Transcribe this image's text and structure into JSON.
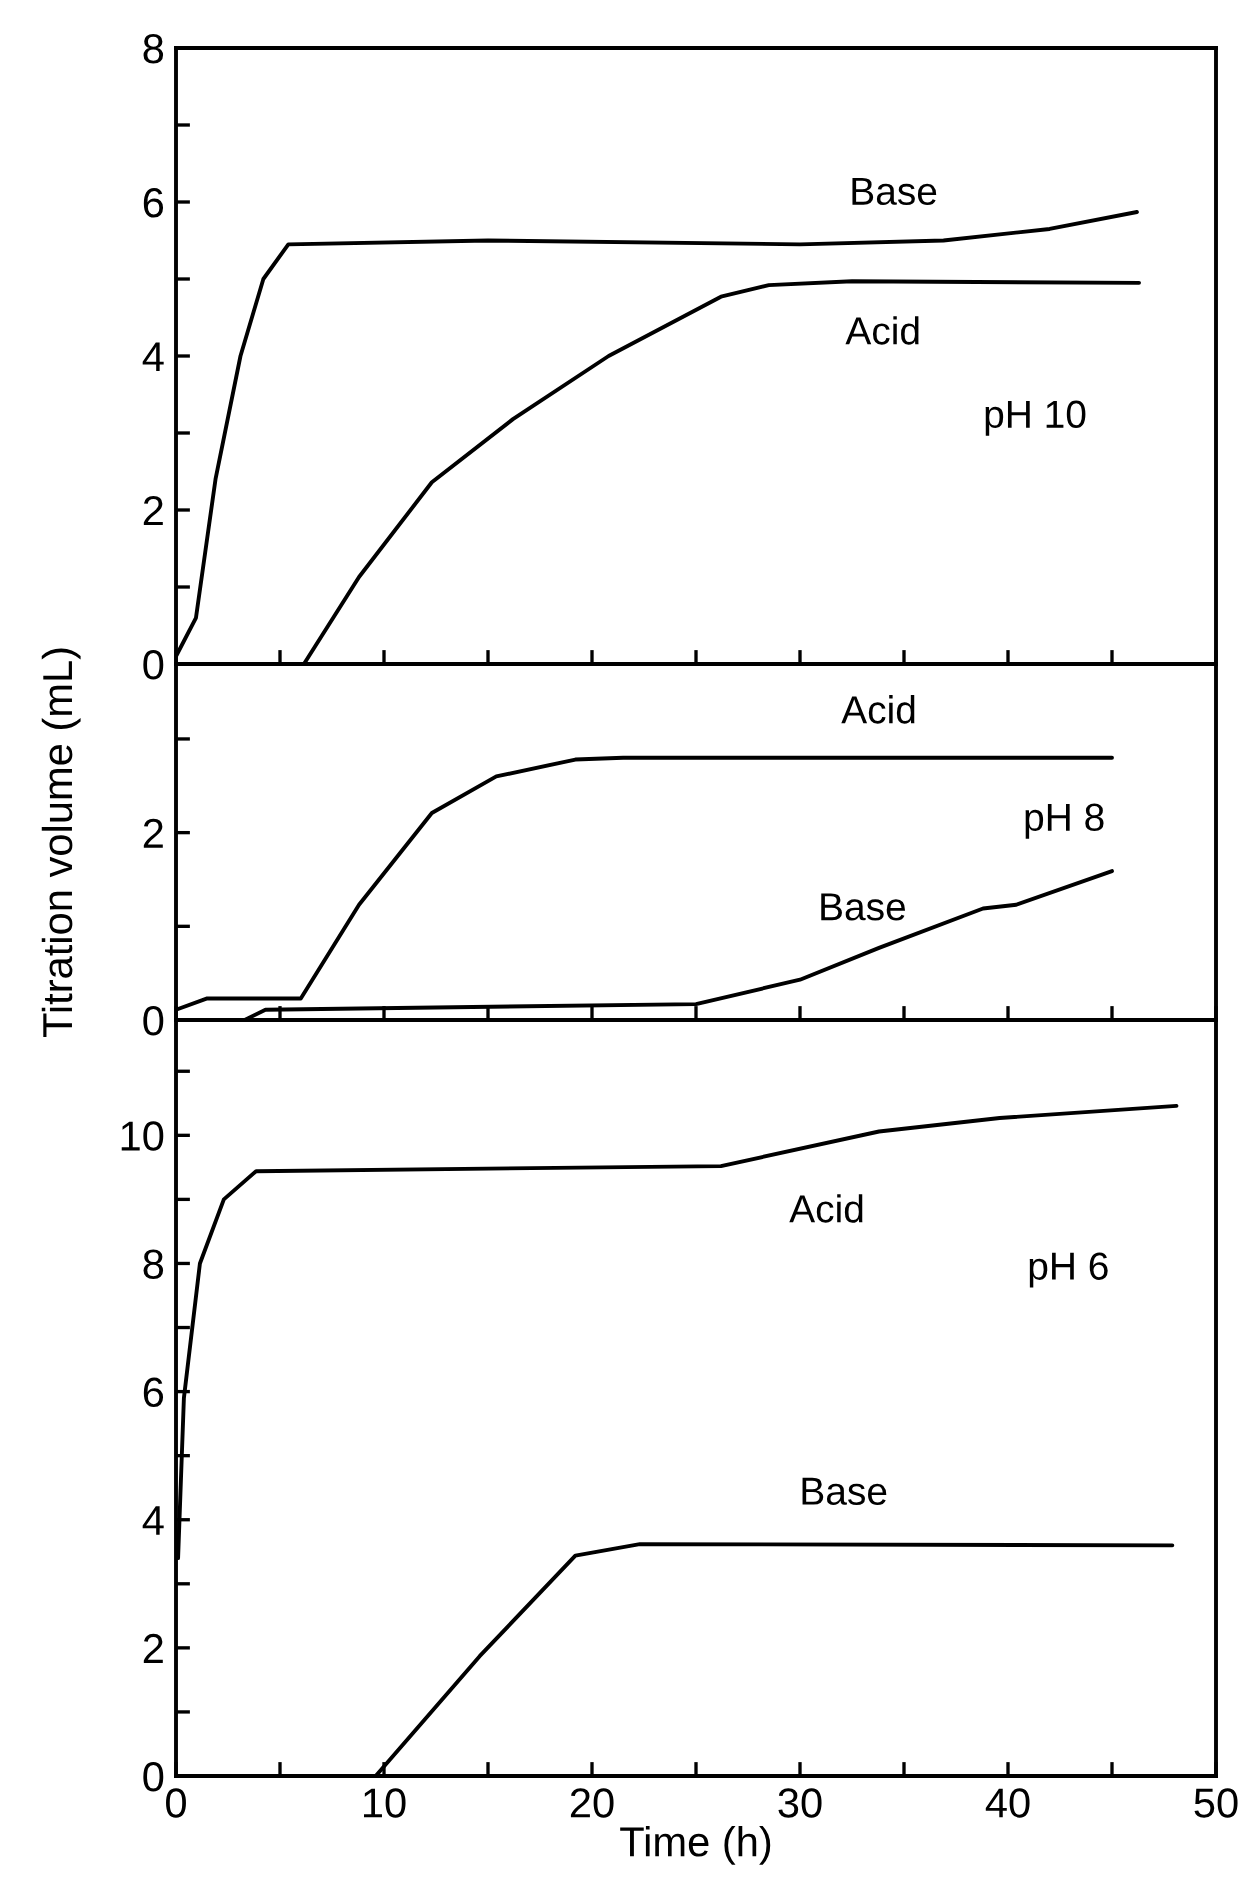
{
  "chart_data": [
    {
      "type": "line",
      "tick_labels": "y",
      "xlim": [
        0,
        50
      ],
      "xticks": [
        {
          "value": 0,
          "label": null
        },
        {
          "value": 5,
          "label": null
        },
        {
          "value": 10,
          "label": null
        },
        {
          "value": 15,
          "label": null
        },
        {
          "value": 20,
          "label": null
        },
        {
          "value": 25,
          "label": null
        },
        {
          "value": 30,
          "label": null
        },
        {
          "value": 35,
          "label": null
        },
        {
          "value": 40,
          "label": null
        },
        {
          "value": 45,
          "label": null
        },
        {
          "value": 50,
          "label": null
        }
      ],
      "ylim": [
        0,
        8
      ],
      "yticks": [
        0,
        {
          "value": 1,
          "label": null
        },
        2,
        {
          "value": 3,
          "label": null
        },
        4,
        {
          "value": 5,
          "label": null
        },
        6,
        {
          "value": 7,
          "label": null
        },
        8
      ],
      "series": [
        {
          "name": "Base",
          "color": "#000000",
          "x": [
            0,
            0.96,
            1.9,
            3.1,
            4.2,
            5.4,
            15,
            30,
            36.9,
            42,
            46.2
          ],
          "values": [
            0.1,
            0.6,
            2.4,
            4.0,
            5.0,
            5.45,
            5.5,
            5.45,
            5.5,
            5.65,
            5.87
          ]
        },
        {
          "name": "Acid",
          "color": "#000000",
          "x": [
            6.15,
            8.8,
            12.3,
            16.2,
            20.8,
            26.2,
            28.5,
            32.5,
            46.3
          ],
          "values": [
            0,
            1.13,
            2.36,
            3.18,
            4.0,
            4.77,
            4.92,
            4.97,
            4.95
          ]
        }
      ],
      "annotations": [
        "pH 10"
      ]
    },
    {
      "type": "line",
      "tick_labels": "y",
      "ylabel": "Titration volume (mL)",
      "xlim": [
        0,
        50
      ],
      "xticks": [
        {
          "value": 0,
          "label": null
        },
        {
          "value": 5,
          "label": null
        },
        {
          "value": 10,
          "label": null
        },
        {
          "value": 15,
          "label": null
        },
        {
          "value": 20,
          "label": null
        },
        {
          "value": 25,
          "label": null
        },
        {
          "value": 30,
          "label": null
        },
        {
          "value": 35,
          "label": null
        },
        {
          "value": 40,
          "label": null
        },
        {
          "value": 45,
          "label": null
        },
        {
          "value": 50,
          "label": null
        }
      ],
      "ylim": [
        0,
        3.8
      ],
      "yticks": [
        0,
        {
          "value": 1,
          "label": null
        },
        2,
        {
          "value": 3,
          "label": null
        }
      ],
      "series": [
        {
          "name": "Acid",
          "color": "#000000",
          "x": [
            0,
            1.5,
            6.0,
            8.8,
            12.3,
            15.4,
            19.2,
            21.5,
            45.0
          ],
          "values": [
            0.11,
            0.23,
            0.23,
            1.23,
            2.21,
            2.6,
            2.78,
            2.8,
            2.8
          ]
        },
        {
          "name": "Base",
          "color": "#000000",
          "x": [
            3.3,
            4.3,
            25.0,
            30.0,
            33.8,
            38.8,
            40.4,
            45.0
          ],
          "values": [
            0,
            0.11,
            0.17,
            0.43,
            0.77,
            1.19,
            1.23,
            1.59
          ]
        }
      ],
      "annotations": [
        "pH 8"
      ]
    },
    {
      "type": "line",
      "xlabel": "Time (h)",
      "xlim": [
        0,
        50
      ],
      "xticks": [
        0,
        {
          "value": 5,
          "label": null
        },
        10,
        {
          "value": 15,
          "label": null
        },
        20,
        {
          "value": 25,
          "label": null
        },
        30,
        {
          "value": 35,
          "label": null
        },
        40,
        {
          "value": 45,
          "label": null
        },
        50
      ],
      "ylim": [
        0,
        11.8
      ],
      "yticks": [
        0,
        {
          "value": 1,
          "label": null
        },
        2,
        {
          "value": 3,
          "label": null
        },
        4,
        {
          "value": 5,
          "label": null
        },
        6,
        {
          "value": 7,
          "label": null
        },
        8,
        {
          "value": 9,
          "label": null
        },
        10,
        {
          "value": 11,
          "label": null
        }
      ],
      "series": [
        {
          "name": "Acid",
          "color": "#000000",
          "x": [
            0.1,
            0.38,
            1.15,
            2.3,
            3.85,
            26.2,
            33.8,
            39.6,
            48.1
          ],
          "values": [
            3.4,
            5.9,
            8.0,
            9.0,
            9.44,
            9.52,
            10.06,
            10.27,
            10.46
          ]
        },
        {
          "name": "Base",
          "color": "#000000",
          "x": [
            9.6,
            14.6,
            19.2,
            22.3,
            47.9
          ],
          "values": [
            0,
            1.87,
            3.44,
            3.62,
            3.6
          ]
        }
      ],
      "annotations": [
        "pH 6"
      ]
    }
  ]
}
